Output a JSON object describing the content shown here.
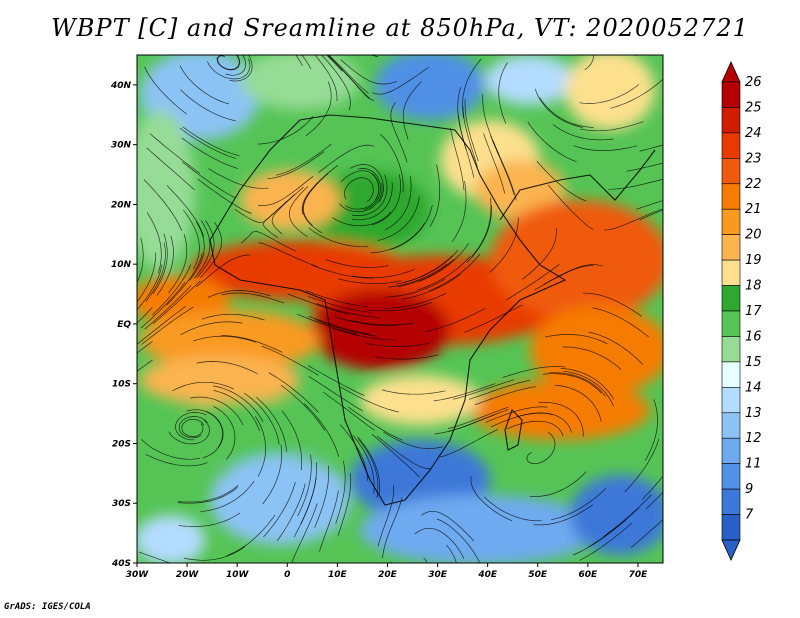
{
  "title": "WBPT [C] and Sreamline at 850hPa, VT: 2020052721",
  "credit": "GrADS: IGES/COLA",
  "map": {
    "lon_range": [
      -30,
      75
    ],
    "lat_range": [
      -40,
      45
    ],
    "x_ticks": [
      {
        "value": -30,
        "label": "30W"
      },
      {
        "value": -20,
        "label": "20W"
      },
      {
        "value": -10,
        "label": "10W"
      },
      {
        "value": 0,
        "label": "0"
      },
      {
        "value": 10,
        "label": "10E"
      },
      {
        "value": 20,
        "label": "20E"
      },
      {
        "value": 30,
        "label": "30E"
      },
      {
        "value": 40,
        "label": "40E"
      },
      {
        "value": 50,
        "label": "50E"
      },
      {
        "value": 60,
        "label": "60E"
      },
      {
        "value": 70,
        "label": "70E"
      }
    ],
    "y_ticks": [
      {
        "value": 40,
        "label": "40N"
      },
      {
        "value": 30,
        "label": "30N"
      },
      {
        "value": 20,
        "label": "20N"
      },
      {
        "value": 10,
        "label": "10N"
      },
      {
        "value": 0,
        "label": "EQ"
      },
      {
        "value": -10,
        "label": "10S"
      },
      {
        "value": -20,
        "label": "20S"
      },
      {
        "value": -30,
        "label": "30S"
      },
      {
        "value": -40,
        "label": "40S"
      }
    ]
  },
  "colorbar": {
    "labels": [
      "26",
      "25",
      "24",
      "23",
      "22",
      "21",
      "20",
      "19",
      "18",
      "17",
      "16",
      "15",
      "14",
      "13",
      "12",
      "11",
      "9",
      "7"
    ],
    "colors": [
      "#b40000",
      "#d01c00",
      "#e83a00",
      "#f05a10",
      "#f57c00",
      "#f99a20",
      "#fbb450",
      "#fde08e",
      "#2fa82f",
      "#55c455",
      "#96dc96",
      "#e6ffff",
      "#b4dcff",
      "#8cc3f5",
      "#6eaaf0",
      "#5090e6",
      "#3c78d8",
      "#2860c8"
    ]
  }
}
